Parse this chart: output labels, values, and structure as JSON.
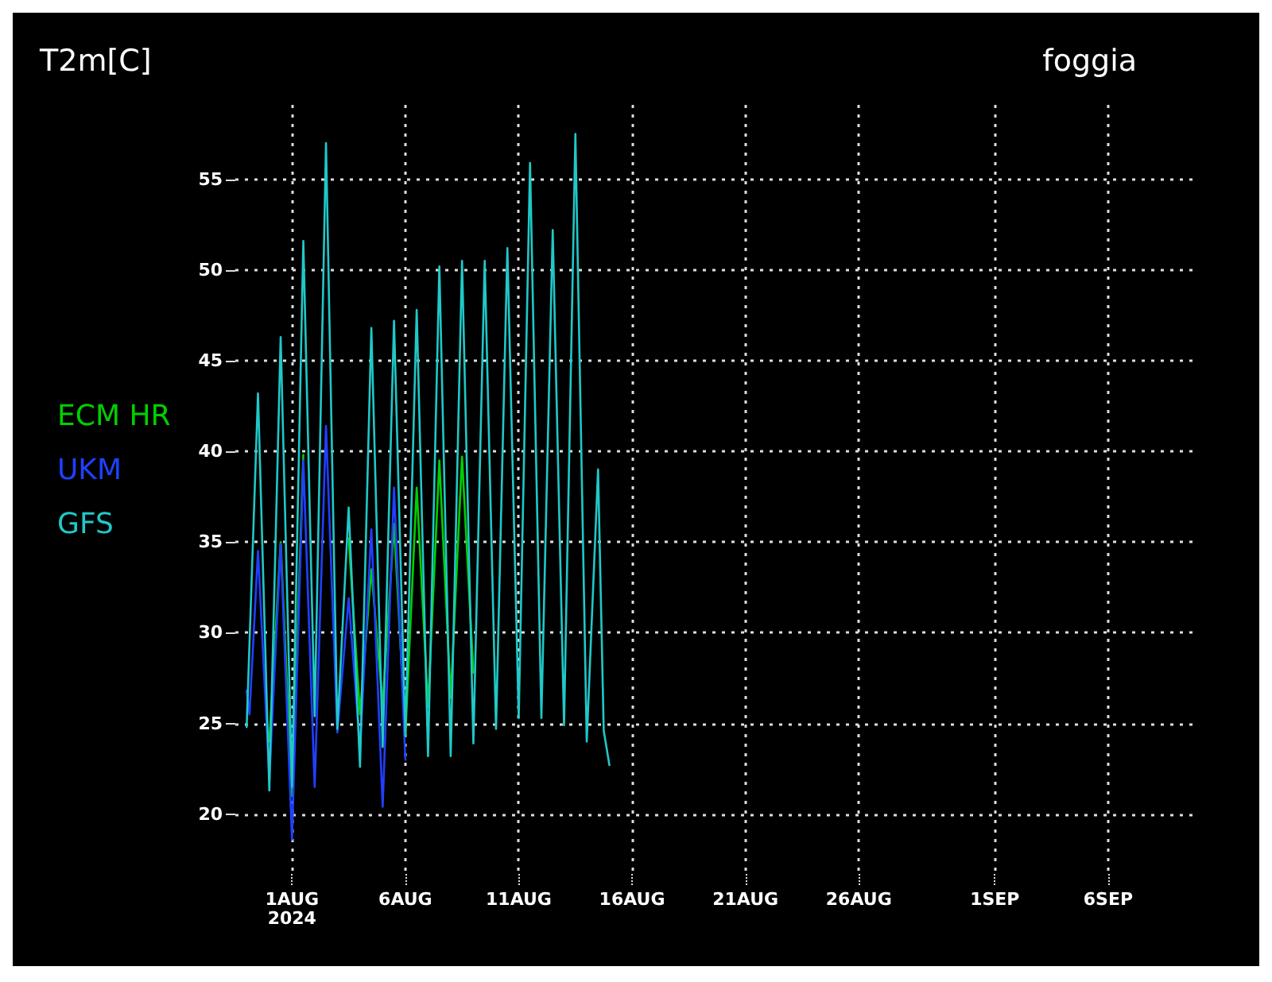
{
  "chart_data": {
    "type": "line",
    "title": "T2m[C]",
    "subtitle": "foggia",
    "xlim": [
      "2024-07-29T12:00",
      "2024-09-10T00:00"
    ],
    "xticks": [
      {
        "value": "2024-08-01",
        "label": "1AUG\n2024"
      },
      {
        "value": "2024-08-06",
        "label": "6AUG"
      },
      {
        "value": "2024-08-11",
        "label": "11AUG"
      },
      {
        "value": "2024-08-16",
        "label": "16AUG"
      },
      {
        "value": "2024-08-21",
        "label": "21AUG"
      },
      {
        "value": "2024-08-26",
        "label": "26AUG"
      },
      {
        "value": "2024-09-01",
        "label": "1SEP"
      },
      {
        "value": "2024-09-06",
        "label": "6SEP"
      }
    ],
    "ylim": [
      16.7,
      59.1
    ],
    "yticks": [
      20,
      25,
      30,
      35,
      40,
      45,
      50,
      55
    ],
    "grid": true,
    "legend": "left",
    "marker": "none",
    "line_style": "solid",
    "series": [
      {
        "name": "ECM HR",
        "color": "#00d000",
        "x": [
          "2024-07-31T00:00",
          "2024-07-31T12:00",
          "2024-08-01T00:00",
          "2024-08-01T12:00",
          "2024-08-02T00:00",
          "2024-08-02T12:00",
          "2024-08-03T00:00",
          "2024-08-03T12:00",
          "2024-08-04T00:00",
          "2024-08-04T12:00",
          "2024-08-05T00:00",
          "2024-08-05T12:00",
          "2024-08-06T00:00",
          "2024-08-06T12:00",
          "2024-08-07T00:00",
          "2024-08-07T12:00",
          "2024-08-08T00:00",
          "2024-08-08T12:00",
          "2024-08-09T00:00"
        ],
        "values": [
          24.0,
          35.0,
          21.0,
          39.8,
          null,
          null,
          null,
          35.2,
          25.5,
          33.5,
          26.0,
          36.0,
          24.3,
          38.0,
          25.9,
          39.5,
          26.4,
          39.7,
          27.8
        ]
      },
      {
        "name": "UKM",
        "color": "#2040ff",
        "x": [
          "2024-07-30T00:00",
          "2024-07-30T03:00",
          "2024-07-30T12:00",
          "2024-07-31T00:00",
          "2024-07-31T12:00",
          "2024-08-01T00:00",
          "2024-08-01T12:00",
          "2024-08-02T00:00",
          "2024-08-02T12:00",
          "2024-08-03T00:00",
          "2024-08-03T12:00",
          "2024-08-04T00:00",
          "2024-08-04T12:00",
          "2024-08-05T00:00",
          "2024-08-05T12:00",
          "2024-08-06T00:00"
        ],
        "values": [
          26.8,
          25.5,
          34.5,
          21.9,
          34.9,
          18.6,
          39.5,
          21.5,
          41.4,
          24.5,
          31.9,
          23.6,
          35.7,
          20.4,
          38.0,
          23.0
        ]
      },
      {
        "name": "GFS",
        "color": "#20c8c8",
        "x": [
          "2024-07-30T00:00",
          "2024-07-30T12:00",
          "2024-07-31T00:00",
          "2024-07-31T12:00",
          "2024-08-01T00:00",
          "2024-08-01T12:00",
          "2024-08-02T00:00",
          "2024-08-02T12:00",
          "2024-08-03T00:00",
          "2024-08-03T12:00",
          "2024-08-04T00:00",
          "2024-08-04T12:00",
          "2024-08-05T00:00",
          "2024-08-05T12:00",
          "2024-08-06T00:00",
          "2024-08-06T12:00",
          "2024-08-07T00:00",
          "2024-08-07T12:00",
          "2024-08-08T00:00",
          "2024-08-08T12:00",
          "2024-08-09T00:00",
          "2024-08-09T12:00",
          "2024-08-10T00:00",
          "2024-08-10T12:00",
          "2024-08-11T00:00",
          "2024-08-11T12:00",
          "2024-08-12T00:00",
          "2024-08-12T12:00",
          "2024-08-13T00:00",
          "2024-08-13T12:00",
          "2024-08-14T00:00",
          "2024-08-14T12:00",
          "2024-08-14T18:00",
          "2024-08-15T00:00"
        ],
        "values": [
          24.8,
          43.2,
          21.3,
          46.3,
          21.5,
          51.6,
          25.4,
          57.0,
          24.7,
          36.9,
          22.6,
          46.8,
          23.7,
          47.2,
          24.3,
          47.8,
          23.2,
          50.2,
          23.2,
          50.5,
          23.9,
          50.5,
          24.7,
          51.2,
          25.3,
          55.9,
          25.3,
          52.2,
          24.9,
          57.5,
          24.0,
          39.0,
          24.6,
          22.7
        ]
      }
    ]
  }
}
